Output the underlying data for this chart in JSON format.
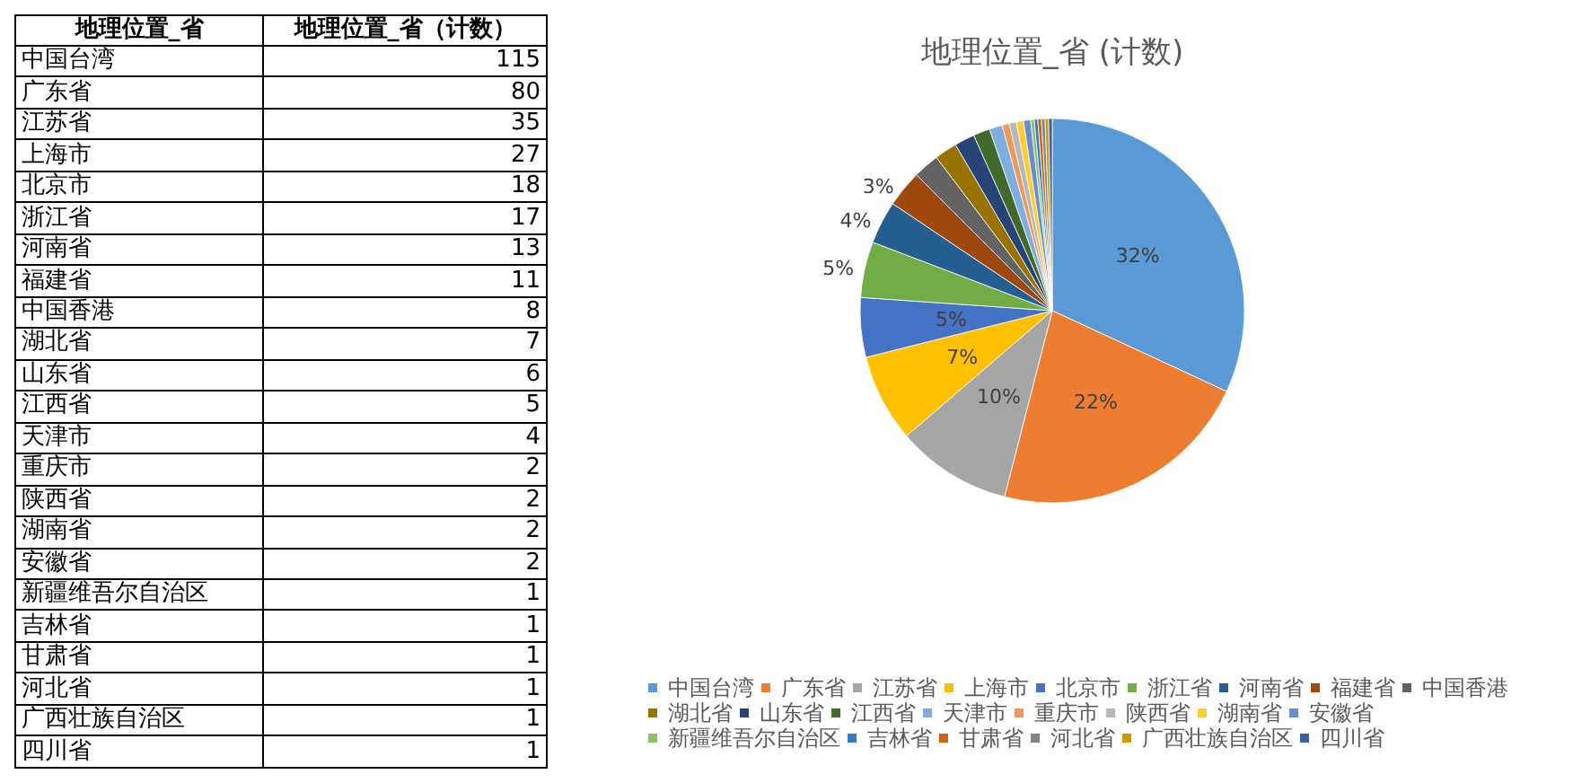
{
  "chart_data": [
    {
      "type": "other",
      "annotations": [
        "地理位置_省",
        "地理位置_省（计数）"
      ],
      "categories": [
        "中国台湾",
        "广东省",
        "江苏省",
        "上海市",
        "北京市",
        "浙江省",
        "河南省",
        "福建省",
        "中国香港",
        "湖北省",
        "山东省",
        "江西省",
        "天津市",
        "重庆市",
        "陕西省",
        "湖南省",
        "安徽省",
        "新疆维吾尔自治区",
        "吉林省",
        "甘肃省",
        "河北省",
        "广西壮族自治区",
        "四川省"
      ],
      "values": [
        115,
        80,
        35,
        27,
        18,
        17,
        13,
        11,
        8,
        7,
        6,
        5,
        4,
        2,
        2,
        2,
        2,
        1,
        1,
        1,
        1,
        1,
        1
      ],
      "data_labels": true
    },
    {
      "type": "pie",
      "title": "地理位置_省 (计数)",
      "categories": [
        "中国台湾",
        "广东省",
        "江苏省",
        "上海市",
        "北京市",
        "浙江省",
        "河南省",
        "福建省",
        "中国香港",
        "湖北省",
        "山东省",
        "江西省",
        "天津市",
        "重庆市",
        "陕西省",
        "湖南省",
        "安徽省",
        "新疆维吾尔自治区",
        "吉林省",
        "甘肃省",
        "河北省",
        "广西壮族自治区",
        "四川省"
      ],
      "values": [
        31.9,
        22.1,
        9.7,
        7.4,
        5.0,
        4.7,
        3.6,
        3.1,
        2.2,
        1.9,
        1.7,
        1.4,
        1.1,
        0.6,
        0.6,
        0.6,
        0.6,
        0.3,
        0.3,
        0.3,
        0.3,
        0.3,
        0.3
      ],
      "value_labels": [
        "32%",
        "22%",
        "10%",
        "7%",
        "5%",
        "5%",
        "4%",
        "3%",
        null,
        null,
        null,
        null,
        null,
        null,
        null,
        null,
        null,
        null,
        null,
        null,
        null,
        null,
        null
      ],
      "colors": [
        "#5b9bd5",
        "#ed7d31",
        "#a5a5a5",
        "#ffc000",
        "#4472c4",
        "#70ad47",
        "#255e91",
        "#9e480e",
        "#636363",
        "#997300",
        "#264478",
        "#43682b",
        "#7cafdd",
        "#f1975a",
        "#b7b7b7",
        "#ffcd33",
        "#698ed0",
        "#8cc168",
        "#327dc2",
        "#d26012",
        "#848484",
        "#cc9a00",
        "#3a5fa0"
      ],
      "legend": "bottom"
    }
  ]
}
